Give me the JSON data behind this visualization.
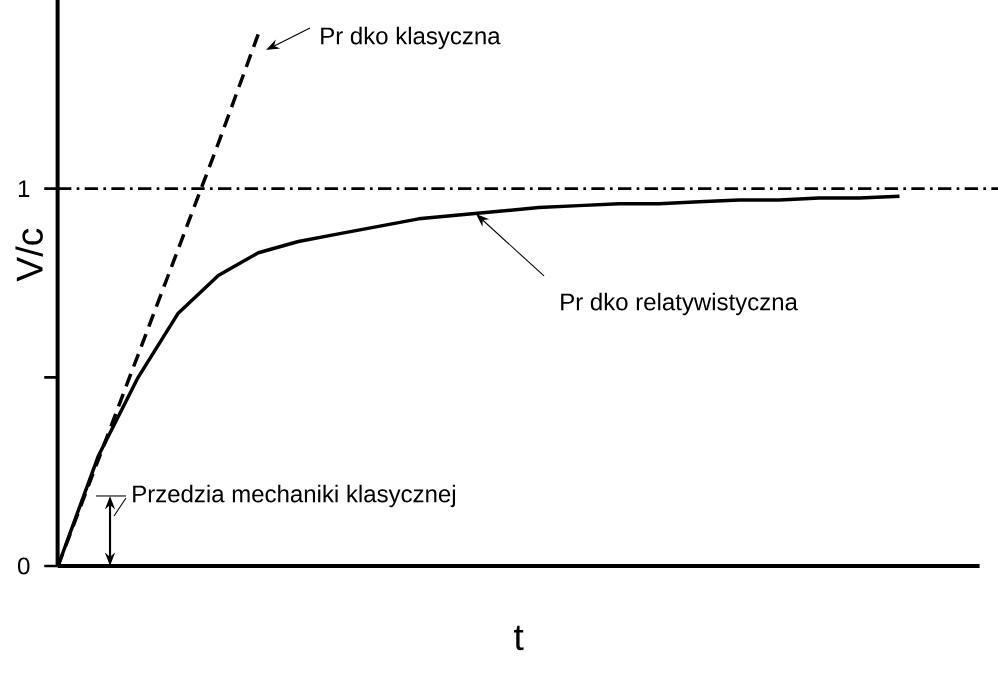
{
  "chart_data": {
    "type": "line",
    "xlabel": "t",
    "ylabel": "V/c",
    "categories": [
      null,
      null,
      null,
      null,
      null,
      null,
      null,
      null,
      null,
      null,
      null,
      null,
      null,
      null,
      null,
      null,
      null,
      null,
      null,
      null,
      null,
      null,
      null,
      null
    ],
    "series": [
      {
        "color": "#000000",
        "line_style": "dashed",
        "values": [
          0,
          0.28,
          0.56,
          0.84,
          1.12,
          1.41,
          null,
          null,
          null,
          null,
          null,
          null,
          null,
          null,
          null,
          null,
          null,
          null,
          null,
          null,
          null,
          null,
          null,
          null
        ]
      },
      {
        "color": "#000000",
        "line_style": "solid",
        "values": [
          0,
          0.29,
          0.5,
          0.67,
          0.77,
          0.83,
          0.86,
          0.88,
          0.9,
          0.92,
          0.93,
          0.94,
          0.95,
          0.955,
          0.96,
          0.96,
          0.965,
          0.97,
          0.97,
          0.975,
          0.975,
          0.98,
          null,
          null
        ]
      }
    ],
    "ylim": [
      0,
      1.5
    ],
    "yticks": [
      0,
      {
        "value": 0.5,
        "label": null
      },
      1
    ],
    "ref_lines": [
      {
        "axis": "y",
        "value": 1,
        "line_style": "dashdot",
        "color": "#000000"
      }
    ],
    "annotations": [
      "Pr dko klasyczna",
      "Pr dko relatywistyczna",
      "Przedzia mechaniki klasycznej"
    ],
    "grid": false,
    "marker": "none"
  }
}
